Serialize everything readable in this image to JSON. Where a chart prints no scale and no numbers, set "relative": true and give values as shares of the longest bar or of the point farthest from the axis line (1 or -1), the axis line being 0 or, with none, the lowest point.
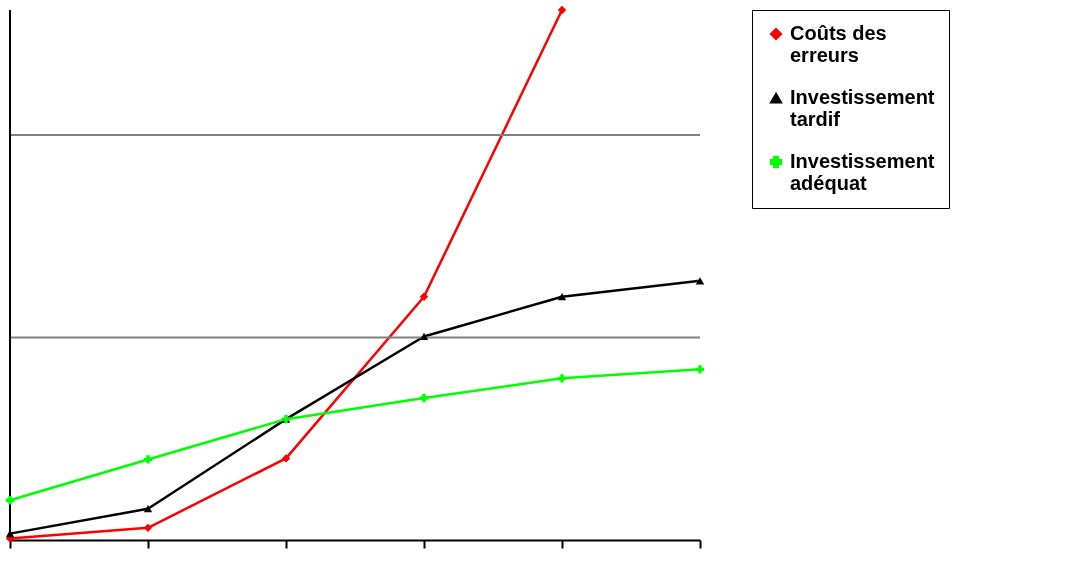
{
  "chart_data": {
    "type": "line",
    "relative": true,
    "categories": [
      null,
      null,
      null,
      null,
      null,
      null
    ],
    "series": [
      {
        "name": "Coûts des erreurs",
        "color": "#ff0000",
        "marker": "diamond",
        "values": [
          0.003,
          0.023,
          0.154,
          0.459,
          1.0,
          null
        ]
      },
      {
        "name": "Investissement tardif",
        "color": "#000000",
        "marker": "triangle",
        "values": [
          0.012,
          0.059,
          0.228,
          0.384,
          0.459,
          0.489
        ]
      },
      {
        "name": "Investissement adéquat",
        "color": "#00ff00",
        "marker": "cross",
        "values": [
          0.075,
          0.152,
          0.228,
          0.268,
          0.305,
          0.322
        ]
      }
    ],
    "ref_lines": [
      {
        "axis": "y",
        "value": 0.382,
        "color": "#808080"
      },
      {
        "axis": "y",
        "value": 0.764,
        "color": "#808080"
      }
    ],
    "legend": "right"
  }
}
